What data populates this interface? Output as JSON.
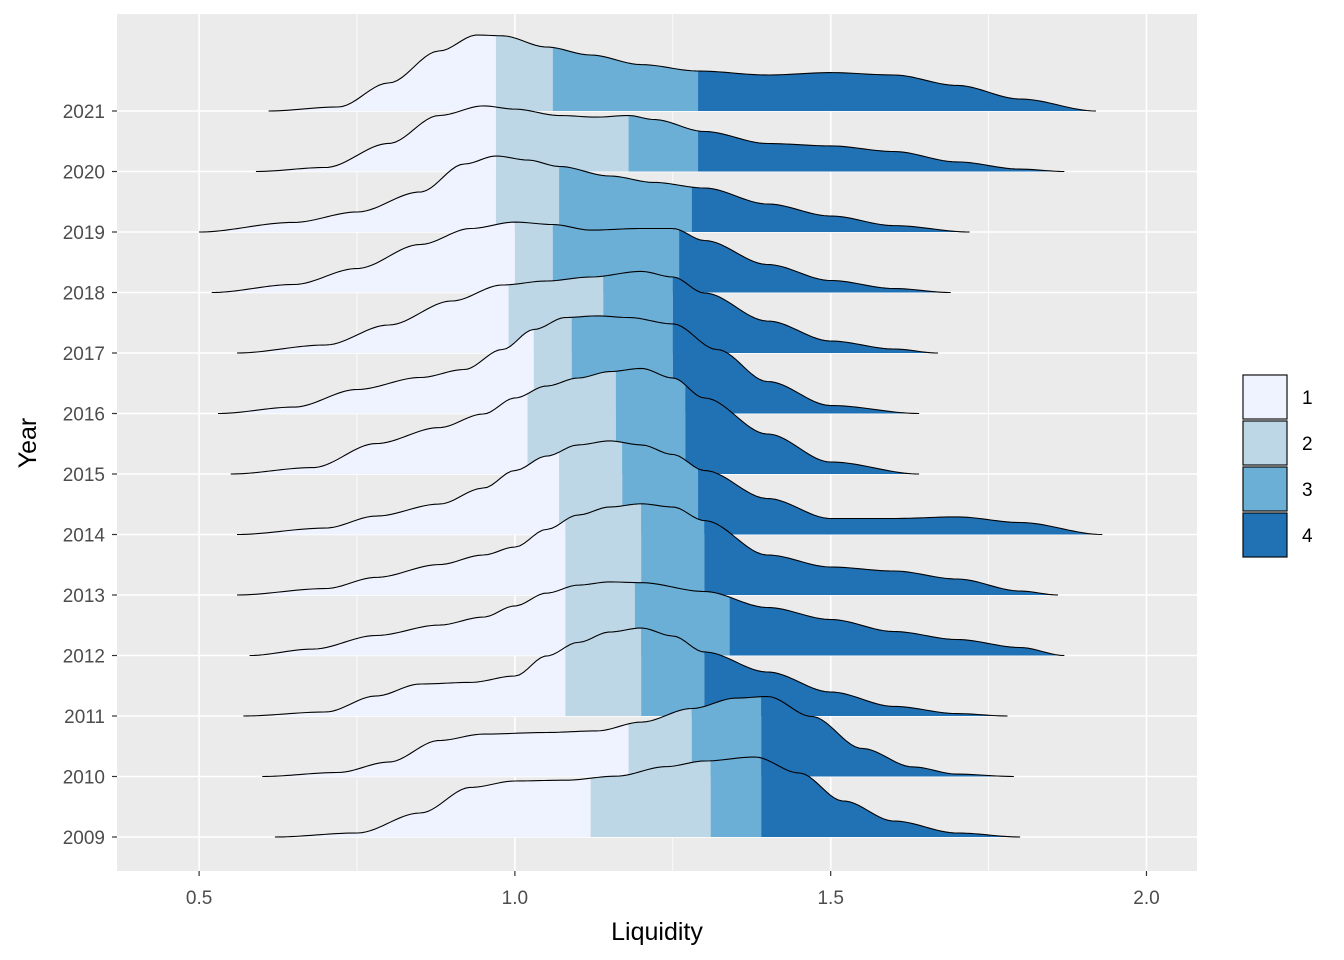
{
  "chart_data": {
    "type": "ridgeline",
    "xlabel": "Liquidity",
    "ylabel": "Year",
    "xlim": [
      0.37,
      2.08
    ],
    "xticks": [
      0.5,
      1.0,
      1.5,
      2.0
    ],
    "xtick_labels": [
      "0.5",
      "1.0",
      "1.5",
      "2.0"
    ],
    "grid": true,
    "legend_position": "right",
    "legend": [
      {
        "label": "1",
        "color": "#eff3ff"
      },
      {
        "label": "2",
        "color": "#bdd7e7"
      },
      {
        "label": "3",
        "color": "#6baed6"
      },
      {
        "label": "4",
        "color": "#2171b5"
      }
    ],
    "years": [
      "2009",
      "2010",
      "2011",
      "2012",
      "2013",
      "2014",
      "2015",
      "2016",
      "2017",
      "2018",
      "2019",
      "2020",
      "2021"
    ],
    "series": [
      {
        "year": "2009",
        "min": 0.62,
        "max": 1.8,
        "quartiles": [
          1.12,
          1.31,
          1.39
        ],
        "density": [
          [
            0.62,
            0
          ],
          [
            0.75,
            0.05
          ],
          [
            0.85,
            0.3
          ],
          [
            0.93,
            0.62
          ],
          [
            1.0,
            0.7
          ],
          [
            1.08,
            0.71
          ],
          [
            1.16,
            0.76
          ],
          [
            1.24,
            0.88
          ],
          [
            1.3,
            0.95
          ],
          [
            1.38,
            1.0
          ],
          [
            1.45,
            0.8
          ],
          [
            1.52,
            0.45
          ],
          [
            1.6,
            0.2
          ],
          [
            1.7,
            0.05
          ],
          [
            1.8,
            0
          ]
        ]
      },
      {
        "year": "2010",
        "min": 0.6,
        "max": 1.79,
        "quartiles": [
          1.18,
          1.28,
          1.39
        ],
        "density": [
          [
            0.6,
            0
          ],
          [
            0.72,
            0.05
          ],
          [
            0.8,
            0.18
          ],
          [
            0.88,
            0.45
          ],
          [
            0.95,
            0.53
          ],
          [
            1.05,
            0.55
          ],
          [
            1.13,
            0.57
          ],
          [
            1.2,
            0.68
          ],
          [
            1.28,
            0.85
          ],
          [
            1.35,
            0.98
          ],
          [
            1.4,
            1.0
          ],
          [
            1.47,
            0.75
          ],
          [
            1.55,
            0.35
          ],
          [
            1.63,
            0.12
          ],
          [
            1.7,
            0.03
          ],
          [
            1.79,
            0
          ]
        ]
      },
      {
        "year": "2011",
        "min": 0.57,
        "max": 1.78,
        "quartiles": [
          1.08,
          1.2,
          1.3
        ],
        "density": [
          [
            0.57,
            0
          ],
          [
            0.7,
            0.05
          ],
          [
            0.78,
            0.25
          ],
          [
            0.85,
            0.4
          ],
          [
            0.93,
            0.42
          ],
          [
            1.0,
            0.5
          ],
          [
            1.05,
            0.75
          ],
          [
            1.1,
            0.92
          ],
          [
            1.15,
            1.05
          ],
          [
            1.2,
            1.1
          ],
          [
            1.25,
            1.0
          ],
          [
            1.3,
            0.8
          ],
          [
            1.4,
            0.55
          ],
          [
            1.5,
            0.3
          ],
          [
            1.6,
            0.12
          ],
          [
            1.7,
            0.03
          ],
          [
            1.78,
            0
          ]
        ]
      },
      {
        "year": "2012",
        "min": 0.58,
        "max": 1.87,
        "quartiles": [
          1.08,
          1.19,
          1.34
        ],
        "density": [
          [
            0.58,
            0
          ],
          [
            0.68,
            0.08
          ],
          [
            0.78,
            0.25
          ],
          [
            0.88,
            0.38
          ],
          [
            0.95,
            0.48
          ],
          [
            1.0,
            0.62
          ],
          [
            1.05,
            0.78
          ],
          [
            1.1,
            0.88
          ],
          [
            1.15,
            0.92
          ],
          [
            1.2,
            0.91
          ],
          [
            1.3,
            0.8
          ],
          [
            1.4,
            0.6
          ],
          [
            1.5,
            0.45
          ],
          [
            1.6,
            0.3
          ],
          [
            1.7,
            0.2
          ],
          [
            1.8,
            0.1
          ],
          [
            1.87,
            0
          ]
        ]
      },
      {
        "year": "2013",
        "min": 0.56,
        "max": 1.86,
        "quartiles": [
          1.08,
          1.2,
          1.3
        ],
        "density": [
          [
            0.56,
            0
          ],
          [
            0.7,
            0.08
          ],
          [
            0.78,
            0.22
          ],
          [
            0.88,
            0.38
          ],
          [
            0.95,
            0.5
          ],
          [
            1.0,
            0.6
          ],
          [
            1.05,
            0.82
          ],
          [
            1.1,
            1.0
          ],
          [
            1.15,
            1.1
          ],
          [
            1.2,
            1.14
          ],
          [
            1.25,
            1.1
          ],
          [
            1.3,
            0.93
          ],
          [
            1.4,
            0.5
          ],
          [
            1.5,
            0.35
          ],
          [
            1.6,
            0.3
          ],
          [
            1.7,
            0.2
          ],
          [
            1.8,
            0.05
          ],
          [
            1.86,
            0
          ]
        ]
      },
      {
        "year": "2014",
        "min": 0.56,
        "max": 1.93,
        "quartiles": [
          1.07,
          1.17,
          1.29
        ],
        "density": [
          [
            0.56,
            0
          ],
          [
            0.7,
            0.08
          ],
          [
            0.78,
            0.23
          ],
          [
            0.88,
            0.38
          ],
          [
            0.95,
            0.58
          ],
          [
            1.0,
            0.8
          ],
          [
            1.05,
            0.98
          ],
          [
            1.1,
            1.12
          ],
          [
            1.15,
            1.17
          ],
          [
            1.2,
            1.12
          ],
          [
            1.25,
            1.0
          ],
          [
            1.3,
            0.8
          ],
          [
            1.4,
            0.45
          ],
          [
            1.5,
            0.2
          ],
          [
            1.6,
            0.2
          ],
          [
            1.7,
            0.22
          ],
          [
            1.8,
            0.15
          ],
          [
            1.93,
            0
          ]
        ]
      },
      {
        "year": "2015",
        "min": 0.55,
        "max": 1.64,
        "quartiles": [
          1.02,
          1.16,
          1.27
        ],
        "density": [
          [
            0.55,
            0
          ],
          [
            0.68,
            0.08
          ],
          [
            0.78,
            0.38
          ],
          [
            0.88,
            0.58
          ],
          [
            0.95,
            0.75
          ],
          [
            1.0,
            0.95
          ],
          [
            1.05,
            1.1
          ],
          [
            1.1,
            1.2
          ],
          [
            1.15,
            1.28
          ],
          [
            1.2,
            1.32
          ],
          [
            1.25,
            1.2
          ],
          [
            1.3,
            0.95
          ],
          [
            1.4,
            0.5
          ],
          [
            1.5,
            0.15
          ],
          [
            1.64,
            0
          ]
        ]
      },
      {
        "year": "2016",
        "min": 0.53,
        "max": 1.64,
        "quartiles": [
          1.03,
          1.09,
          1.25
        ],
        "density": [
          [
            0.53,
            0
          ],
          [
            0.65,
            0.08
          ],
          [
            0.75,
            0.3
          ],
          [
            0.85,
            0.45
          ],
          [
            0.92,
            0.55
          ],
          [
            0.98,
            0.8
          ],
          [
            1.03,
            1.05
          ],
          [
            1.08,
            1.2
          ],
          [
            1.13,
            1.22
          ],
          [
            1.18,
            1.2
          ],
          [
            1.25,
            1.12
          ],
          [
            1.32,
            0.8
          ],
          [
            1.4,
            0.4
          ],
          [
            1.5,
            0.1
          ],
          [
            1.64,
            0
          ]
        ]
      },
      {
        "year": "2017",
        "min": 0.56,
        "max": 1.67,
        "quartiles": [
          0.99,
          1.14,
          1.25
        ],
        "density": [
          [
            0.56,
            0
          ],
          [
            0.7,
            0.1
          ],
          [
            0.8,
            0.35
          ],
          [
            0.9,
            0.65
          ],
          [
            0.98,
            0.85
          ],
          [
            1.05,
            0.9
          ],
          [
            1.12,
            0.95
          ],
          [
            1.2,
            1.02
          ],
          [
            1.25,
            0.95
          ],
          [
            1.3,
            0.75
          ],
          [
            1.4,
            0.4
          ],
          [
            1.5,
            0.15
          ],
          [
            1.6,
            0.05
          ],
          [
            1.67,
            0
          ]
        ]
      },
      {
        "year": "2018",
        "min": 0.52,
        "max": 1.69,
        "quartiles": [
          1.0,
          1.06,
          1.26
        ],
        "density": [
          [
            0.52,
            0
          ],
          [
            0.65,
            0.1
          ],
          [
            0.75,
            0.3
          ],
          [
            0.85,
            0.6
          ],
          [
            0.93,
            0.8
          ],
          [
            1.0,
            0.88
          ],
          [
            1.06,
            0.85
          ],
          [
            1.12,
            0.78
          ],
          [
            1.2,
            0.8
          ],
          [
            1.25,
            0.8
          ],
          [
            1.3,
            0.65
          ],
          [
            1.4,
            0.35
          ],
          [
            1.5,
            0.15
          ],
          [
            1.6,
            0.05
          ],
          [
            1.69,
            0
          ]
        ]
      },
      {
        "year": "2019",
        "min": 0.5,
        "max": 1.72,
        "quartiles": [
          0.97,
          1.07,
          1.28
        ],
        "density": [
          [
            0.5,
            0
          ],
          [
            0.65,
            0.12
          ],
          [
            0.75,
            0.25
          ],
          [
            0.85,
            0.5
          ],
          [
            0.92,
            0.85
          ],
          [
            0.97,
            0.95
          ],
          [
            1.02,
            0.9
          ],
          [
            1.07,
            0.82
          ],
          [
            1.15,
            0.7
          ],
          [
            1.22,
            0.62
          ],
          [
            1.3,
            0.55
          ],
          [
            1.4,
            0.35
          ],
          [
            1.5,
            0.2
          ],
          [
            1.6,
            0.08
          ],
          [
            1.72,
            0
          ]
        ]
      },
      {
        "year": "2020",
        "min": 0.59,
        "max": 1.87,
        "quartiles": [
          0.97,
          1.18,
          1.29
        ],
        "density": [
          [
            0.59,
            0
          ],
          [
            0.7,
            0.05
          ],
          [
            0.8,
            0.35
          ],
          [
            0.88,
            0.7
          ],
          [
            0.95,
            0.82
          ],
          [
            1.0,
            0.78
          ],
          [
            1.07,
            0.7
          ],
          [
            1.13,
            0.68
          ],
          [
            1.18,
            0.7
          ],
          [
            1.22,
            0.65
          ],
          [
            1.3,
            0.5
          ],
          [
            1.4,
            0.35
          ],
          [
            1.5,
            0.32
          ],
          [
            1.6,
            0.25
          ],
          [
            1.7,
            0.12
          ],
          [
            1.8,
            0.03
          ],
          [
            1.87,
            0
          ]
        ]
      },
      {
        "year": "2021",
        "min": 0.61,
        "max": 1.92,
        "quartiles": [
          0.97,
          1.06,
          1.29
        ],
        "density": [
          [
            0.61,
            0
          ],
          [
            0.72,
            0.05
          ],
          [
            0.8,
            0.35
          ],
          [
            0.88,
            0.75
          ],
          [
            0.94,
            0.95
          ],
          [
            0.98,
            0.94
          ],
          [
            1.05,
            0.8
          ],
          [
            1.12,
            0.7
          ],
          [
            1.2,
            0.58
          ],
          [
            1.29,
            0.5
          ],
          [
            1.4,
            0.45
          ],
          [
            1.5,
            0.48
          ],
          [
            1.6,
            0.45
          ],
          [
            1.7,
            0.32
          ],
          [
            1.8,
            0.15
          ],
          [
            1.92,
            0
          ]
        ]
      }
    ]
  }
}
